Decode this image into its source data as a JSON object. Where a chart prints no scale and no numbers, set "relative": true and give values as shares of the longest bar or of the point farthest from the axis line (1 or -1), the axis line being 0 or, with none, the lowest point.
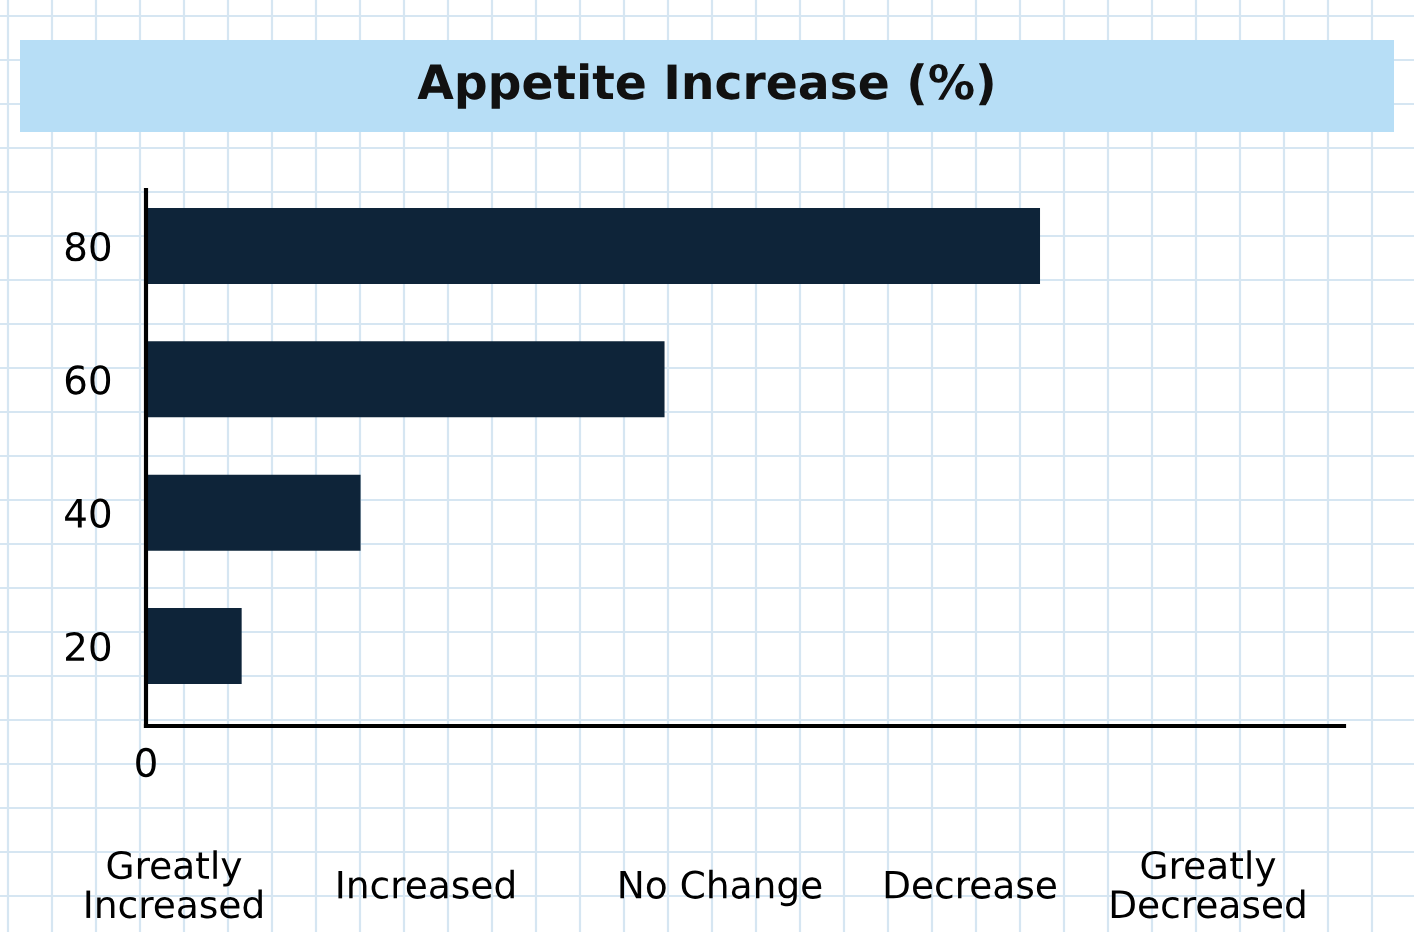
{
  "chart_data": {
    "type": "bar",
    "orientation": "horizontal",
    "relative": true,
    "title": "Appetite Increase (%)",
    "categories": [
      "80",
      "60",
      "40",
      "20"
    ],
    "values": [
      1,
      0.58,
      0.24,
      0.107
    ],
    "color": "#0e2439",
    "grid": true,
    "annotations": [
      "0",
      "Greatly\nIncreased",
      "Increased",
      "No Change",
      "Decrease",
      "Greatly\nDecreased"
    ]
  }
}
